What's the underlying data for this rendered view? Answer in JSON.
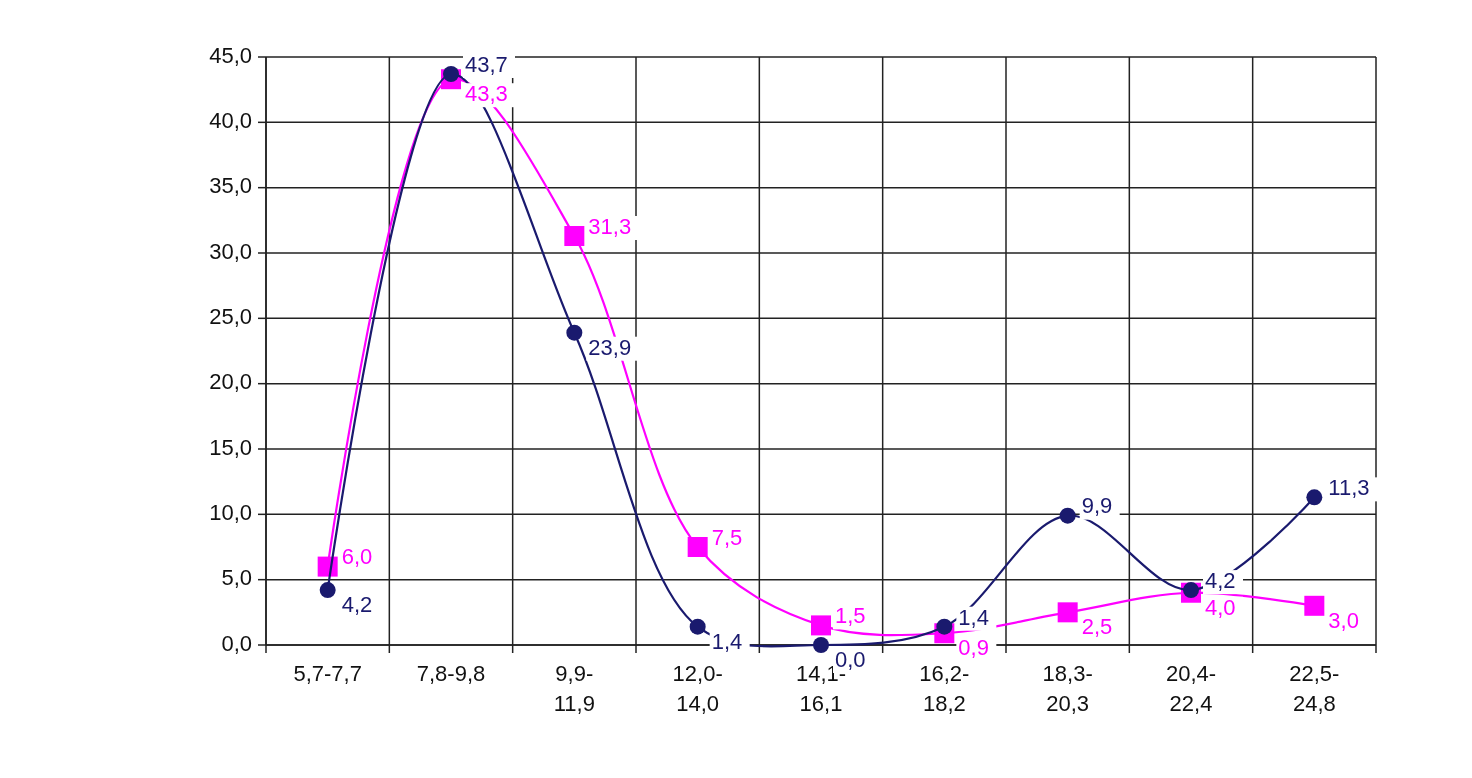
{
  "chart_data": {
    "type": "line",
    "categories": [
      "5,7-7,7",
      "7,8-9,8",
      "9,9-11,9",
      "12,0-14,0",
      "14,1-16,1",
      "16,2-18,2",
      "18,3-20,3",
      "20,4-22,4",
      "22,5-24,8"
    ],
    "series": [
      {
        "color": "#1a1a6e",
        "marker": "circle",
        "values": [
          4.2,
          43.7,
          23.9,
          1.4,
          0.0,
          1.4,
          9.9,
          4.2,
          11.3
        ],
        "value_labels": [
          "4,2",
          "43,7",
          "23,9",
          "1,4",
          "0,0",
          "1,4",
          "9,9",
          "4,2",
          "11,3"
        ]
      },
      {
        "color": "#ff00ff",
        "marker": "square",
        "values": [
          6.0,
          43.3,
          31.3,
          7.5,
          1.5,
          0.9,
          2.5,
          4.0,
          3.0
        ],
        "value_labels": [
          "6,0",
          "43,3",
          "31,3",
          "7,5",
          "1,5",
          "0,9",
          "2,5",
          "4,0",
          "3,0"
        ]
      }
    ],
    "ylim": [
      0,
      45
    ],
    "yticks": [
      {
        "value": 0,
        "label": "0,0"
      },
      {
        "value": 5,
        "label": "5,0"
      },
      {
        "value": 10,
        "label": "10,0"
      },
      {
        "value": 15,
        "label": "15,0"
      },
      {
        "value": 20,
        "label": "20,0"
      },
      {
        "value": 25,
        "label": "25,0"
      },
      {
        "value": 30,
        "label": "30,0"
      },
      {
        "value": 35,
        "label": "35,0"
      },
      {
        "value": 40,
        "label": "40,0"
      },
      {
        "value": 45,
        "label": "45,0"
      }
    ],
    "grid": true
  }
}
